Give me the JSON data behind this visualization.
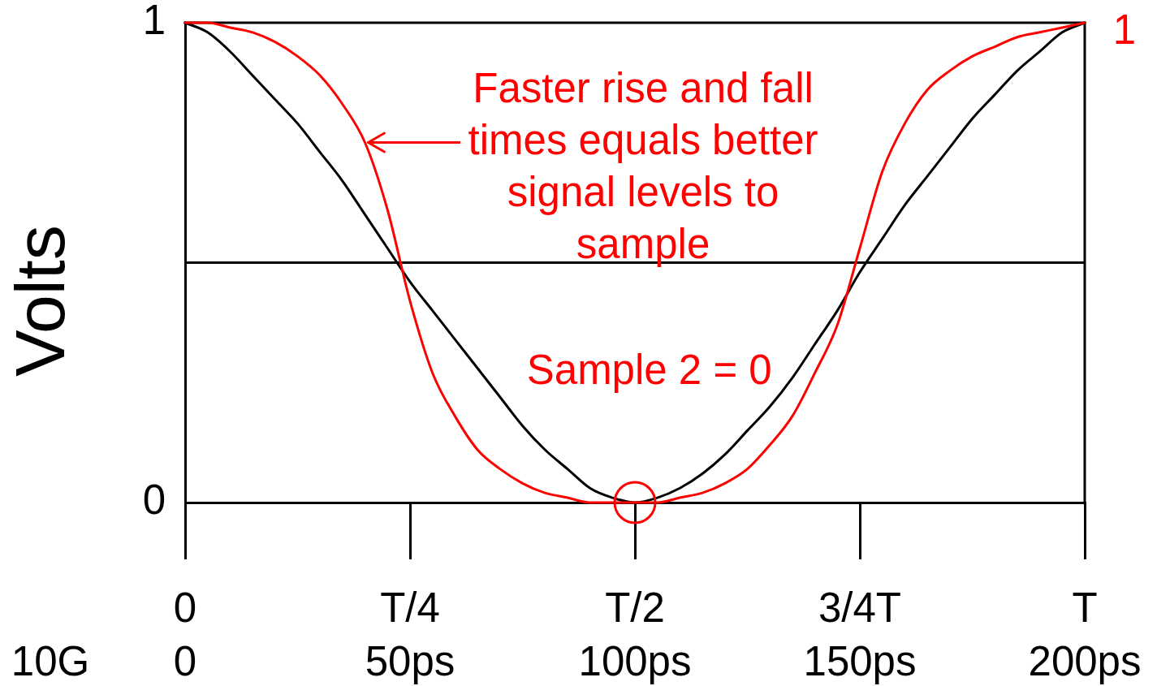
{
  "chart_data": {
    "type": "line",
    "ylabel": "Volts",
    "xlabel": "10G",
    "x": [
      0,
      5,
      10,
      15,
      20,
      25,
      30,
      35,
      40,
      45,
      50,
      55,
      60,
      65,
      70,
      75,
      80,
      85,
      90,
      95,
      100,
      105,
      110,
      115,
      120,
      125,
      130,
      135,
      140,
      145,
      150,
      155,
      160,
      165,
      170,
      175,
      180,
      185,
      190,
      195,
      200
    ],
    "xlim": [
      0,
      200
    ],
    "xticks": [
      0,
      {
        "value": 50,
        "label": "50ps"
      },
      {
        "value": 100,
        "label": "100ps"
      },
      {
        "value": 150,
        "label": "150ps"
      },
      {
        "value": 200,
        "label": "200ps"
      }
    ],
    "ylim": [
      0,
      1
    ],
    "yticks": [
      0,
      1
    ],
    "ref_lines": [
      {
        "axis": "y",
        "value": 0.5,
        "color": "#000000"
      }
    ],
    "series": [
      {
        "color": "#000000",
        "values": [
          1,
          0.98,
          0.94,
          0.89,
          0.84,
          0.79,
          0.73,
          0.67,
          0.6,
          0.53,
          0.46,
          0.4,
          0.34,
          0.28,
          0.22,
          0.16,
          0.11,
          0.07,
          0.03,
          0.01,
          0,
          0.01,
          0.03,
          0.06,
          0.1,
          0.15,
          0.2,
          0.26,
          0.33,
          0.4,
          0.48,
          0.55,
          0.62,
          0.68,
          0.74,
          0.8,
          0.85,
          0.9,
          0.94,
          0.98,
          1
        ]
      },
      {
        "color": "#ff0000",
        "values": [
          1,
          1,
          0.99,
          0.98,
          0.96,
          0.93,
          0.89,
          0.83,
          0.75,
          0.61,
          0.42,
          0.27,
          0.18,
          0.11,
          0.07,
          0.04,
          0.02,
          0.01,
          0,
          0,
          0,
          0,
          0.01,
          0.02,
          0.04,
          0.07,
          0.12,
          0.18,
          0.27,
          0.37,
          0.53,
          0.69,
          0.79,
          0.86,
          0.9,
          0.93,
          0.95,
          0.97,
          0.98,
          0.99,
          1
        ]
      },
      {
        "type": "scatter",
        "color": "#ff0000",
        "marker": "circle",
        "x": [
          100
        ],
        "values": [
          0
        ]
      }
    ],
    "annotations": [
      {
        "text": "Faster rise and fall times equals better signal levels to sample",
        "x": 40,
        "y": 0.75
      },
      "Sample 2 = 0",
      {
        "text": "1",
        "x": 200,
        "y": 1
      },
      "0",
      {
        "text": "T/4",
        "x": 50
      },
      {
        "text": "T/2",
        "x": 100
      },
      {
        "text": "3/4T",
        "x": 150
      },
      {
        "text": "T",
        "x": 200
      }
    ]
  }
}
